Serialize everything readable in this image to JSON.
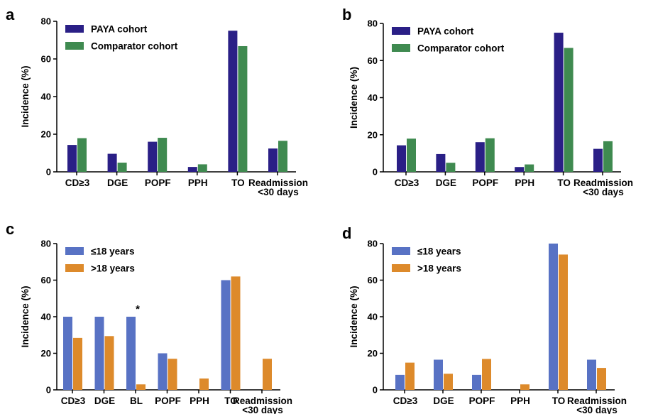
{
  "chart_data": [
    {
      "panel": "a",
      "type": "bar",
      "ylabel": "Incidence (%)",
      "ylim": [
        0,
        80
      ],
      "yticks": [
        0,
        20,
        40,
        60,
        80
      ],
      "categories": [
        [
          "CD≥3"
        ],
        [
          "DGE"
        ],
        [
          "POPF"
        ],
        [
          "PPH"
        ],
        [
          "TO"
        ],
        [
          "Readmission",
          "<30 days"
        ]
      ],
      "series": [
        {
          "name": "PAYA cohort",
          "color": "#2a1f86",
          "values": [
            14.3,
            9.6,
            16.0,
            2.6,
            75.0,
            12.4
          ]
        },
        {
          "name": "Comparator cohort",
          "color": "#3f8a50",
          "values": [
            17.9,
            4.9,
            18.1,
            4.0,
            66.8,
            16.5
          ]
        }
      ],
      "legend": "top-left",
      "annotations": []
    },
    {
      "panel": "b",
      "type": "bar",
      "ylabel": "Incidence (%)",
      "ylim": [
        0,
        80
      ],
      "yticks": [
        0,
        20,
        40,
        60,
        80
      ],
      "categories": [
        [
          "CD≥3"
        ],
        [
          "DGE"
        ],
        [
          "POPF"
        ],
        [
          "PPH"
        ],
        [
          "TO"
        ],
        [
          "Readmission",
          "<30 days"
        ]
      ],
      "series": [
        {
          "name": "PAYA cohort",
          "color": "#2a1f86",
          "values": [
            14.3,
            9.6,
            16.0,
            2.6,
            75.0,
            12.4
          ]
        },
        {
          "name": "Comparator cohort",
          "color": "#3f8a50",
          "values": [
            17.9,
            4.9,
            18.1,
            4.0,
            66.8,
            16.5
          ]
        }
      ],
      "legend": "top-left",
      "annotations": []
    },
    {
      "panel": "c",
      "type": "bar",
      "ylabel": "Incidence (%)",
      "ylim": [
        0,
        80
      ],
      "yticks": [
        0,
        20,
        40,
        60,
        80
      ],
      "categories": [
        [
          "CD≥3"
        ],
        [
          "DGE"
        ],
        [
          "BL"
        ],
        [
          "POPF"
        ],
        [
          "PPH"
        ],
        [
          "TO"
        ],
        [
          "Readmission",
          "<30 days"
        ]
      ],
      "series": [
        {
          "name": "≤18 years",
          "color": "#5872c4",
          "values": [
            40,
            40,
            40,
            20,
            0,
            60,
            0
          ]
        },
        {
          "name": ">18 years",
          "color": "#dd8a2b",
          "values": [
            28.4,
            29.4,
            3.0,
            17.0,
            6.2,
            62.0,
            17.0
          ]
        }
      ],
      "legend": "top-left",
      "annotations": [
        {
          "category": "BL",
          "text": "*"
        }
      ]
    },
    {
      "panel": "d",
      "type": "bar",
      "ylabel": "Incidence (%)",
      "ylim": [
        0,
        80
      ],
      "yticks": [
        0,
        20,
        40,
        60,
        80
      ],
      "categories": [
        [
          "CD≥3"
        ],
        [
          "DGE"
        ],
        [
          "POPF"
        ],
        [
          "PPH"
        ],
        [
          "TO"
        ],
        [
          "Readmission",
          "<30 days"
        ]
      ],
      "series": [
        {
          "name": "≤18 years",
          "color": "#5872c4",
          "values": [
            8.2,
            16.5,
            8.2,
            0,
            80.0,
            16.5
          ]
        },
        {
          "name": ">18 years",
          "color": "#dd8a2b",
          "values": [
            14.9,
            8.8,
            16.9,
            3.0,
            74.0,
            12.0
          ]
        }
      ],
      "legend": "top-left",
      "annotations": []
    }
  ]
}
